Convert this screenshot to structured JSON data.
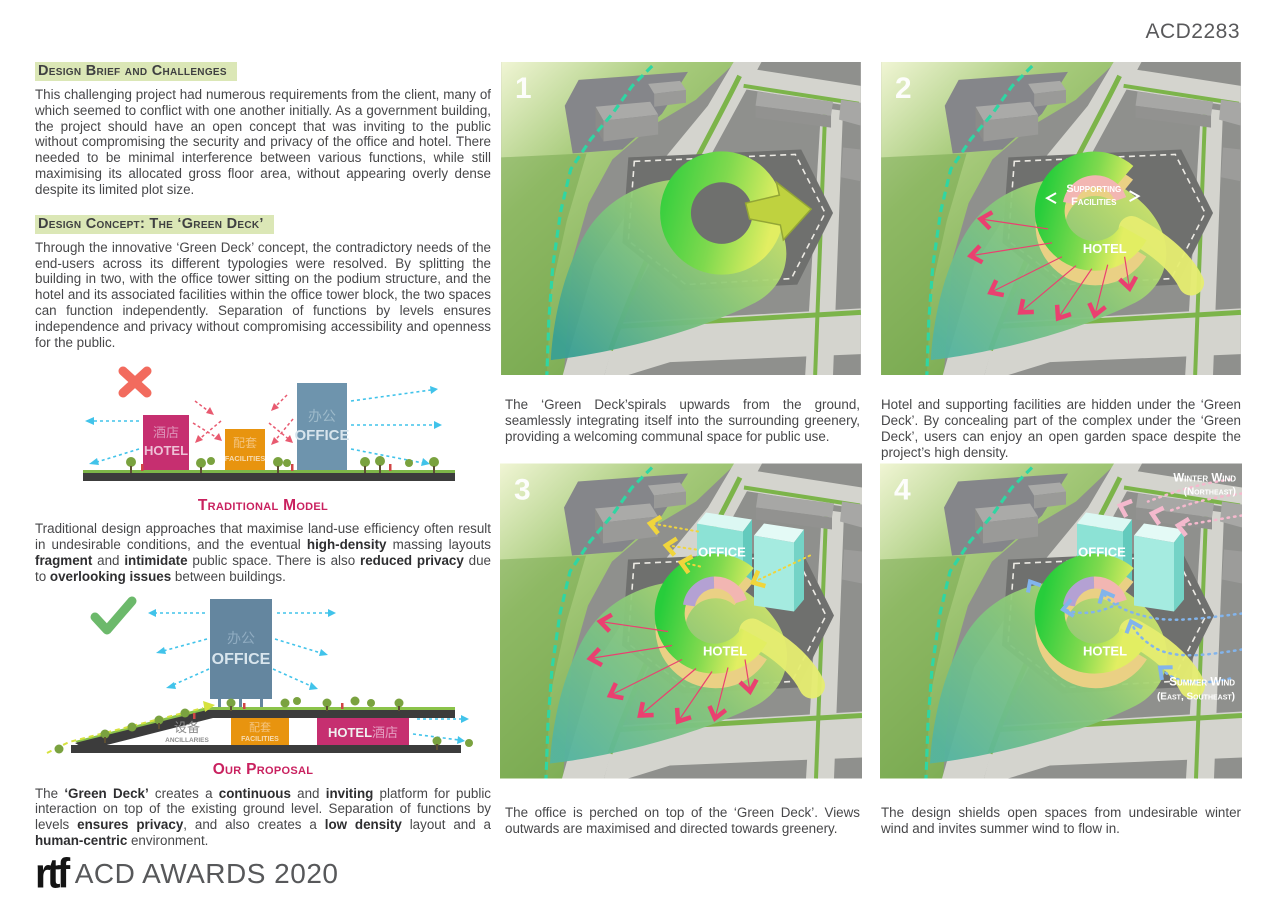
{
  "header": {
    "code": "ACD2283"
  },
  "brief": {
    "heading": "Design Brief and Challenges",
    "body": "This challenging project had numerous requirements from the client, many of which seemed to conflict with one another initially. As a government building, the project should have an open concept that was inviting to the public without compromising the security and privacy of the office and hotel. There needed to be minimal interference between various functions, while still maximising its allocated gross floor area, without appearing overly dense despite its limited plot size."
  },
  "concept": {
    "heading": "Design Concept: The ‘Green Deck’",
    "body": "Through the innovative ‘Green Deck’ concept, the contradictory needs of the end-users across its different typologies were resolved. By splitting the building in two, with the office tower sitting on the podium structure, and the hotel and its associated facilities within the office tower block, the two spaces can function independently. Separation of functions by levels ensures independence and privacy without compromising accessibility and openness for the public."
  },
  "traditional": {
    "title": "Traditional Model",
    "hotel_cn": "酒店",
    "hotel_en": "HOTEL",
    "facilities_cn": "配套",
    "facilities_en": "FACILITIES",
    "office_cn": "办公",
    "office_en": "OFFICE",
    "body_html": "Traditional design approaches that maximise land-use efficiency often result in undesirable conditions, and the eventual <b>high-density</b> massing layouts <b>fragment</b> and <b>intimidate</b> public space. There is also <b>reduced privacy</b> due to <b>overlooking issues</b> between buildings."
  },
  "proposal": {
    "title": "Our Proposal",
    "office_cn": "办公",
    "office_en": "OFFICE",
    "ancillaries_cn": "设备",
    "ancillaries_en": "ANCILLARIES",
    "facilities_cn": "配套",
    "facilities_en": "FACILITIES",
    "hotel_en": "HOTEL",
    "hotel_cn": "酒店",
    "body_html": "The <b>‘Green Deck’</b> creates a <b>continuous</b> and <b>inviting</b> platform for public interaction on top of the existing ground level. Separation of functions by levels <b>ensures privacy</b>, and also creates a <b>low density</b> layout and a <b>human-centric</b> environment."
  },
  "footer": {
    "logo": "rtf",
    "award": "ACD AWARDS 2020"
  },
  "panels": {
    "p1": {
      "number": "1",
      "caption": "The ‘Green Deck’spirals upwards from the ground, seamlessly integrating itself into the surrounding greenery, providing a welcoming communal space for public use."
    },
    "p2": {
      "number": "2",
      "supporting1": "Supporting",
      "supporting2": "Facilities",
      "hotel": "HOTEL",
      "caption": "Hotel and supporting facilities are hidden under the ‘Green Deck’. By concealing part of the complex under the ‘Green Deck’, users can enjoy an open garden space despite the project’s high density."
    },
    "p3": {
      "number": "3",
      "office": "OFFICE",
      "hotel": "HOTEL",
      "caption": "The office is perched on top of the ‘Green Deck’. Views outwards are maximised and directed towards greenery."
    },
    "p4": {
      "number": "4",
      "office": "OFFICE",
      "hotel": "HOTEL",
      "winter1": "Winter Wind",
      "winter2": "(Northeast)",
      "summer1": "Summer Wind",
      "summer2": "(East, Southeast)",
      "caption": "The design shields open spaces from undesirable winter wind and invites summer wind to flow in."
    }
  },
  "colors": {
    "accent_pink": "#c9215f",
    "heading_highlight": "#dbe7b6",
    "hotel_block": "#c62f70",
    "facilities_block": "#e8940f",
    "office_block": "#6e94ad",
    "deck_green": "#2fcf36",
    "teal_boundary": "#2fd6a3"
  }
}
